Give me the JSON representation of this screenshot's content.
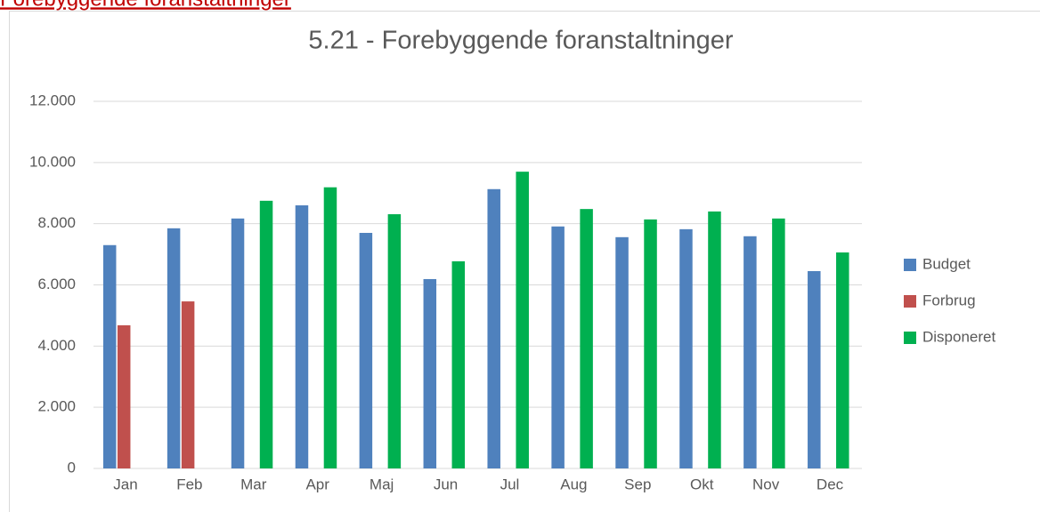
{
  "heading": "Forebyggende foranstaltninger",
  "chart_data": {
    "type": "bar",
    "title": "5.21 - Forebyggende foranstaltninger",
    "categories": [
      "Jan",
      "Feb",
      "Mar",
      "Apr",
      "Maj",
      "Jun",
      "Jul",
      "Aug",
      "Sep",
      "Okt",
      "Nov",
      "Dec"
    ],
    "series": [
      {
        "name": "Budget",
        "color": "#4f81bd",
        "values": [
          7300,
          7850,
          8170,
          8600,
          7700,
          6190,
          9130,
          7910,
          7560,
          7820,
          7590,
          6450
        ]
      },
      {
        "name": "Forbrug",
        "color": "#c0504d",
        "values": [
          4680,
          5460,
          null,
          null,
          null,
          null,
          null,
          null,
          null,
          null,
          null,
          null
        ]
      },
      {
        "name": "Disponeret",
        "color": "#00b050",
        "values": [
          null,
          null,
          8750,
          9190,
          8310,
          6770,
          9700,
          8480,
          8140,
          8400,
          8170,
          7060
        ]
      }
    ],
    "ylim": [
      0,
      12000
    ],
    "yticks": [
      0,
      {
        "value": 2000,
        "label": "2.000"
      },
      {
        "value": 4000,
        "label": "4.000"
      },
      {
        "value": 6000,
        "label": "6.000"
      },
      {
        "value": 8000,
        "label": "8.000"
      },
      {
        "value": 10000,
        "label": "10.000"
      },
      {
        "value": 12000,
        "label": "12.000"
      }
    ],
    "grid": true,
    "legend": "right"
  }
}
